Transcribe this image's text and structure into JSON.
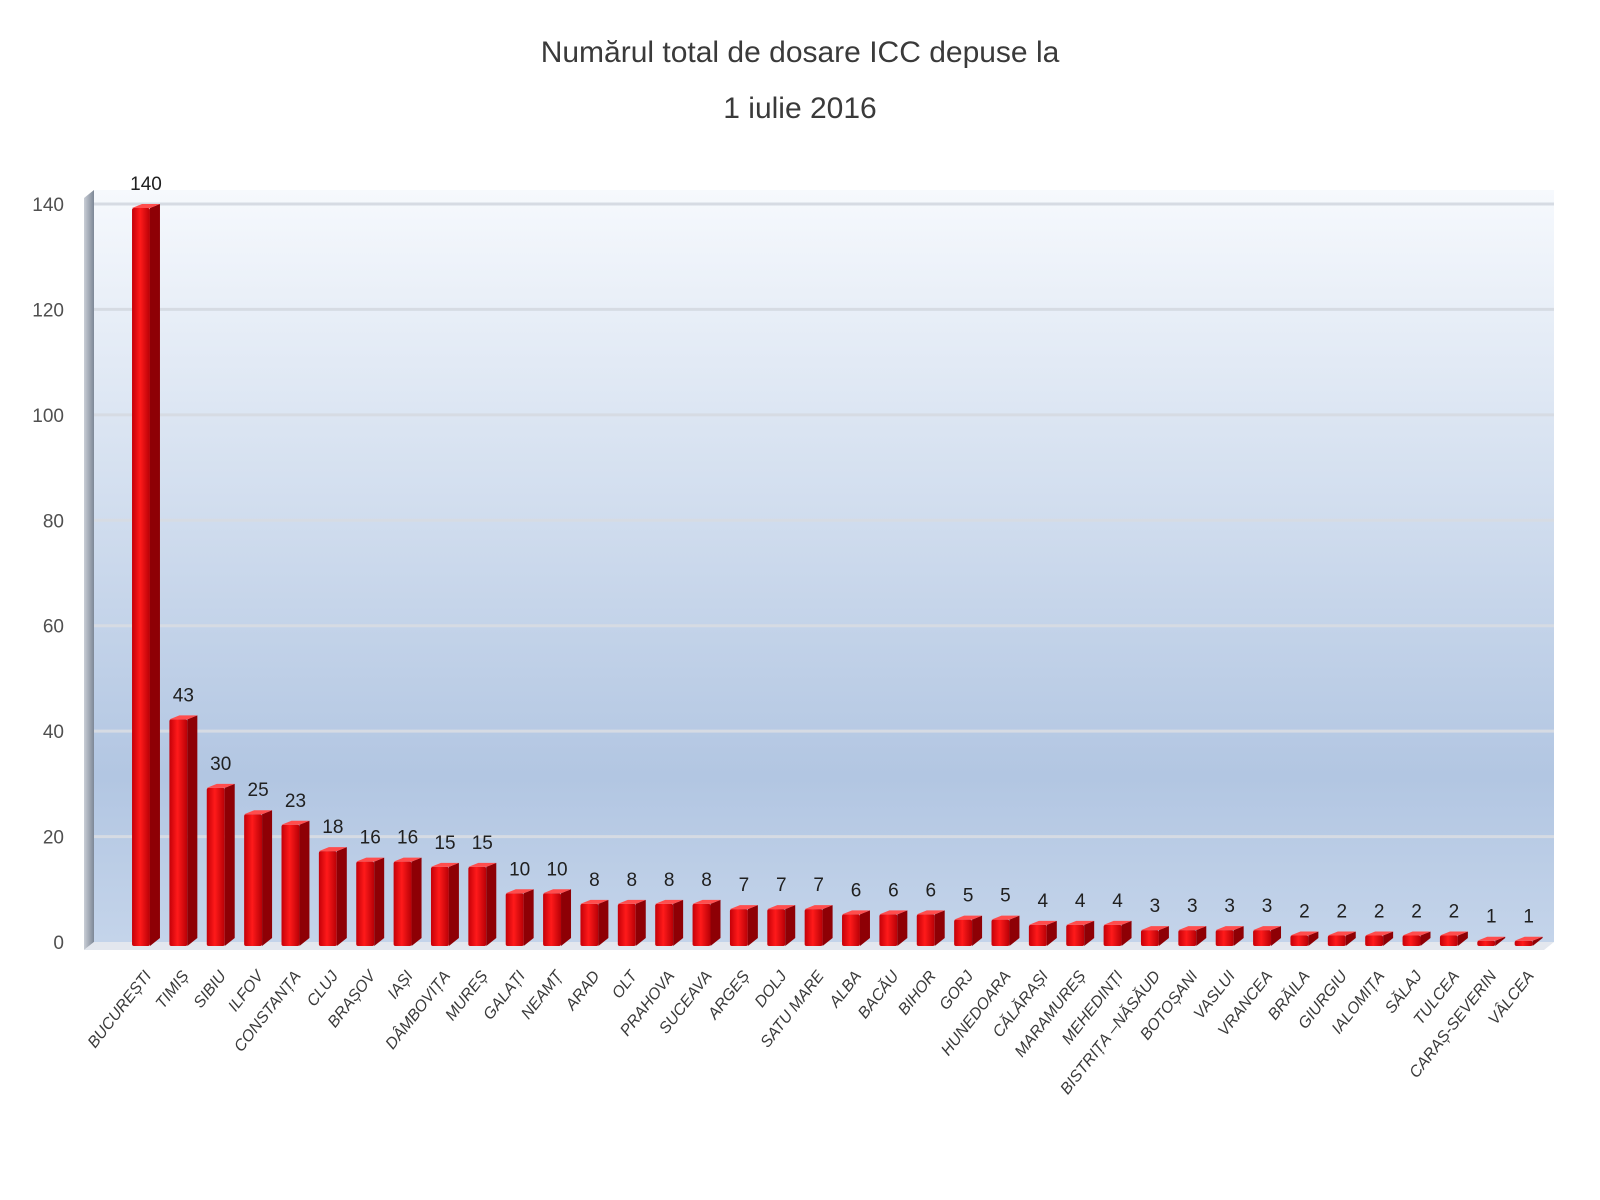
{
  "chart_data": {
    "type": "bar",
    "title": "Numărul total de dosare ICC depuse la",
    "subtitle": "1 iulie 2016",
    "xlabel": "",
    "ylabel": "",
    "ylim": [
      0,
      140
    ],
    "yticks": [
      "0",
      "20",
      "40",
      "60",
      "80",
      "100",
      "120",
      "140"
    ],
    "grid": true,
    "bar_color": "#e8000b",
    "categories": [
      "BUCUREȘTI",
      "TIMIȘ",
      "SIBIU",
      "ILFOV",
      "CONSTANȚA",
      "CLUJ",
      "BRAȘOV",
      "IAȘI",
      "DÂMBOVIȚA",
      "MUREȘ",
      "GALAȚI",
      "NEAMȚ",
      "ARAD",
      "OLT",
      "PRAHOVA",
      "SUCEAVA",
      "ARGEȘ",
      "DOLJ",
      "SATU MARE",
      "ALBA",
      "BACĂU",
      "BIHOR",
      "GORJ",
      "HUNEDOARA",
      "CĂLĂRAȘI",
      "MARAMUREȘ",
      "MEHEDINȚI",
      "BISTRIȚA –NĂSĂUD",
      "BOTOȘANI",
      "VASLUI",
      "VRANCEA",
      "BRĂILA",
      "GIURGIU",
      "IALOMIȚA",
      "SĂLAJ",
      "TULCEA",
      "CARAȘ-SEVERIN",
      "VÂLCEA"
    ],
    "values": [
      140,
      43,
      30,
      25,
      23,
      18,
      16,
      16,
      15,
      15,
      10,
      10,
      8,
      8,
      8,
      8,
      7,
      7,
      7,
      6,
      6,
      6,
      5,
      5,
      4,
      4,
      4,
      3,
      3,
      3,
      3,
      2,
      2,
      2,
      2,
      2,
      1,
      1
    ],
    "data_labels": [
      "140",
      "43",
      "30",
      "25",
      "23",
      "18",
      "16",
      "16",
      "15",
      "15",
      "10",
      "10",
      "8",
      "8",
      "8",
      "8",
      "7",
      "7",
      "7",
      "6",
      "6",
      "6",
      "5",
      "5",
      "4",
      "4",
      "4",
      "3",
      "3",
      "3",
      "3",
      "2",
      "2",
      "2",
      "2",
      "2",
      "1",
      "1"
    ]
  }
}
